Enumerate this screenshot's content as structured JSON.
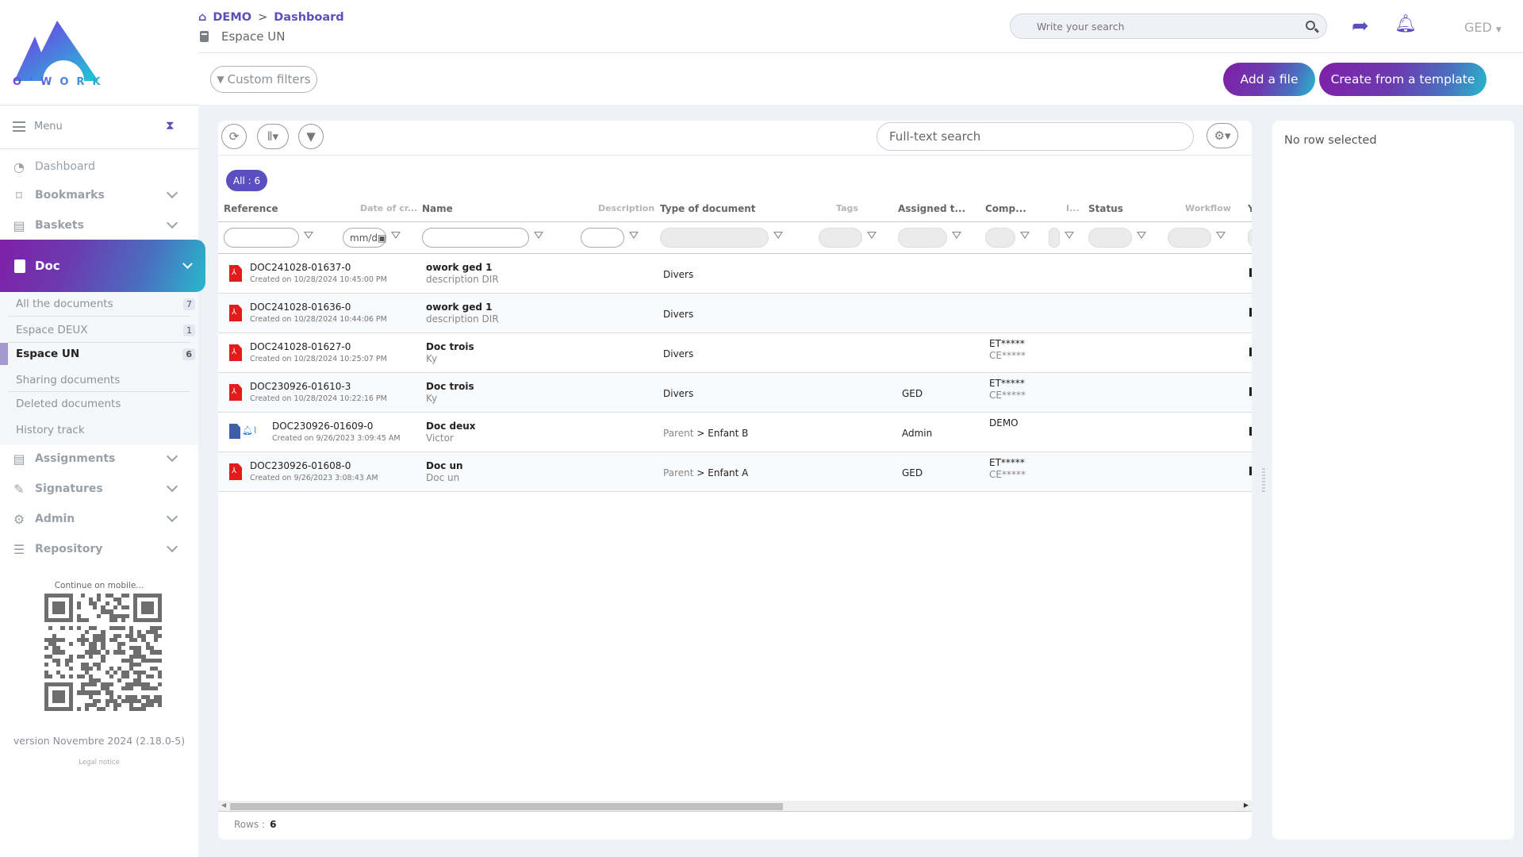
{
  "brand": {
    "logo_text": "O'WORK",
    "gradient": [
      "#7f1fa8",
      "#27b9cc"
    ],
    "accent": "#5a4fc0"
  },
  "header": {
    "breadcrumb": [
      "DEMO",
      "Dashboard"
    ],
    "breadcrumb_sep": ">",
    "space": "Espace UN",
    "search_placeholder": "Write your search",
    "app_switch": "GED",
    "custom_filters": "Custom filters",
    "add_file": "Add a file",
    "create_template": "Create from a template"
  },
  "sidebar": {
    "menu": "Menu",
    "items": [
      {
        "label": "Dashboard",
        "icon": "gauge-icon",
        "expandable": false
      },
      {
        "label": "Bookmarks",
        "icon": "bookmark-icon",
        "expandable": true
      },
      {
        "label": "Baskets",
        "icon": "book-icon",
        "expandable": true
      }
    ],
    "active": {
      "label": "Doc",
      "icon": "book-icon"
    },
    "sub_items": [
      {
        "label": "All the documents",
        "count": "7"
      },
      {
        "label": "Espace DEUX",
        "count": "1"
      },
      {
        "label": "Espace UN",
        "count": "6",
        "active": true
      },
      {
        "label": "Sharing documents"
      },
      {
        "label": "Deleted documents"
      },
      {
        "label": "History track"
      }
    ],
    "items_after": [
      {
        "label": "Assignments",
        "icon": "book-icon"
      },
      {
        "label": "Signatures",
        "icon": "signature-icon"
      },
      {
        "label": "Admin",
        "icon": "gear-icon"
      },
      {
        "label": "Repository",
        "icon": "list-icon"
      }
    ],
    "qr_caption": "Continue on mobile...",
    "version": "version Novembre 2024 (2.18.0-5)",
    "legal": "Legal notice"
  },
  "grid": {
    "fulltext_placeholder": "Full-text search",
    "all_badge": "All : 6",
    "columns": [
      "Reference",
      "Date of cr...",
      "Name",
      "Description",
      "Type of document",
      "Tags",
      "Assigned t...",
      "Comp...",
      "I...",
      "Status",
      "Workflow",
      "Y"
    ],
    "date_placeholder": "mm/d",
    "rows": [
      {
        "icon": "pdf",
        "reference": "DOC241028-01637-0",
        "created": "Created on 10/28/2024 10:45:00 PM",
        "name": "owork ged 1",
        "subname": "description DIR",
        "type": "Divers",
        "type_parent": "",
        "assigned": "",
        "comp": [
          "",
          ""
        ]
      },
      {
        "icon": "pdf",
        "reference": "DOC241028-01636-0",
        "created": "Created on 10/28/2024 10:44:06 PM",
        "name": "owork ged 1",
        "subname": "description DIR",
        "type": "Divers",
        "type_parent": "",
        "assigned": "",
        "comp": [
          "",
          ""
        ]
      },
      {
        "icon": "pdf",
        "reference": "DOC241028-01627-0",
        "created": "Created on 10/28/2024 10:25:07 PM",
        "name": "Doc trois",
        "subname": "Ky",
        "type": "Divers",
        "type_parent": "",
        "assigned": "",
        "comp": [
          "ET*****",
          "CE*****"
        ]
      },
      {
        "icon": "pdf",
        "reference": "DOC230926-01610-3",
        "created": "Created on 10/28/2024 10:22:16 PM",
        "name": "Doc trois",
        "subname": "Ky",
        "type": "Divers",
        "type_parent": "",
        "assigned": "GED",
        "comp": [
          "ET*****",
          "CE*****"
        ]
      },
      {
        "icon": "word",
        "reference": "DOC230926-01609-0",
        "created": "Created on 9/26/2023 3:09:45 AM",
        "name": "Doc deux",
        "subname": "Victor",
        "type": "> Enfant B",
        "type_parent": "Parent",
        "assigned": "Admin",
        "comp": [
          "DEMO",
          ""
        ]
      },
      {
        "icon": "pdf",
        "reference": "DOC230926-01608-0",
        "created": "Created on 9/26/2023 3:08:43 AM",
        "name": "Doc un",
        "subname": "Doc un",
        "type": "> Enfant A",
        "type_parent": "Parent",
        "assigned": "GED",
        "comp": [
          "ET*****",
          "CE*****"
        ]
      }
    ],
    "rows_label": "Rows :",
    "rows_count": "6"
  },
  "detail_panel": {
    "empty": "No row selected"
  }
}
